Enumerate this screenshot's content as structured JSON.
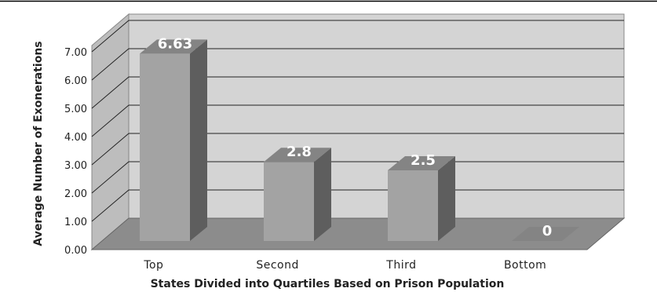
{
  "chart_data": {
    "type": "bar",
    "categories": [
      "Top",
      "Second",
      "Third",
      "Bottom"
    ],
    "values": [
      6.63,
      2.8,
      2.5,
      0
    ],
    "data_labels": [
      "6.63",
      "2.8",
      "2.5",
      "0"
    ],
    "y_ticks": [
      "0.00",
      "1.00",
      "2.00",
      "3.00",
      "4.00",
      "5.00",
      "6.00",
      "7.00"
    ],
    "ylim": [
      0,
      7.5
    ],
    "xlabel": "States Divided into Quartiles Based on Prison Population",
    "ylabel": "Average Number of Exonerations",
    "grid": true,
    "style": "3d",
    "colors": {
      "wall": "#d4d4d4",
      "floor": "#8c8c8c",
      "bar_front": "#a3a3a3",
      "bar_side": "#5e5e5e",
      "bar_top": "#848484",
      "gridline": "#222222",
      "rule": "#000000"
    }
  }
}
